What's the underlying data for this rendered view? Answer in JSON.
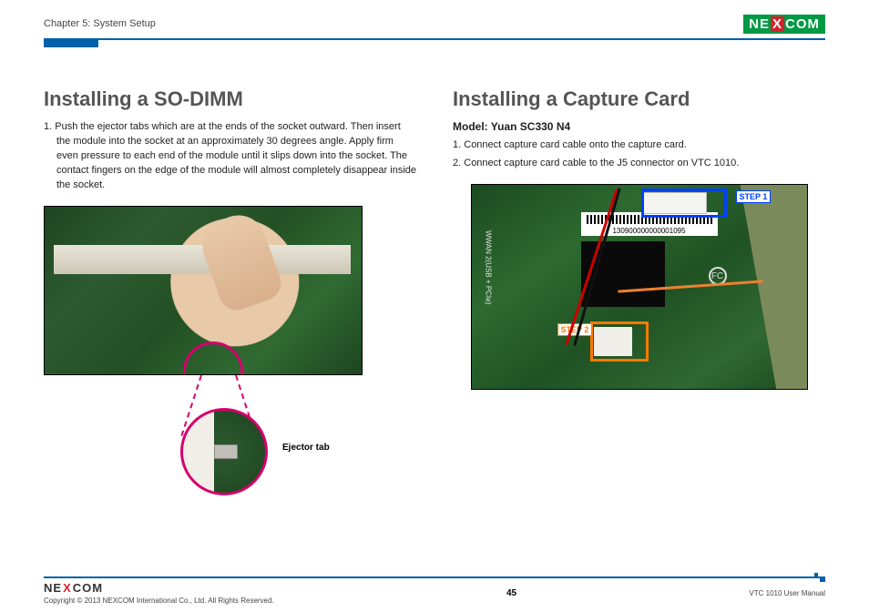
{
  "header": {
    "chapter": "Chapter 5: System Setup",
    "brand_pre": "NE",
    "brand_x": "X",
    "brand_post": "COM"
  },
  "left": {
    "heading": "Installing a SO-DIMM",
    "step1_num": "1.",
    "step1_text": "Push the ejector tabs which are at the ends of the socket outward. Then insert the module into the socket at an approximately 30 degrees angle. Apply firm even pressure to each end of the module until it slips down into the socket. The contact fingers on the edge of the module will almost completely disappear inside the socket.",
    "detail_label": "Ejector tab"
  },
  "right": {
    "heading": "Installing a Capture Card",
    "model_label": "Model: Yuan SC330 N4",
    "step1_num": "1.",
    "step1_text": "Connect capture card cable onto the capture card.",
    "step2_num": "2.",
    "step2_text": "Connect capture card cable to the J5 connector on VTC 1010.",
    "barcode_text": "130900000000001095",
    "side_text": "WWAN 2(USB + PCIe)",
    "step1_badge": "STEP 1",
    "step2_badge": "STEP 2",
    "fcc": "FC"
  },
  "footer": {
    "brand_pre": "NE",
    "brand_x": "X",
    "brand_post": "COM",
    "copyright": "Copyright © 2013 NEXCOM International Co., Ltd. All Rights Reserved.",
    "page": "45",
    "manual": "VTC 1010 User Manual"
  },
  "colors": {
    "accent_blue": "#0060a8",
    "brand_green": "#009944",
    "brand_red": "#d2232a",
    "highlight_pink": "#d6006d",
    "step1_blue": "#0040ff",
    "step2_orange": "#ff7a00"
  }
}
